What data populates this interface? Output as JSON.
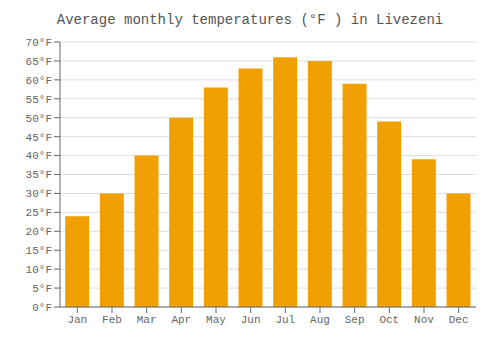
{
  "chart_data": {
    "type": "bar",
    "title": "Average monthly temperatures (°F ) in Livezeni",
    "categories": [
      "Jan",
      "Feb",
      "Mar",
      "Apr",
      "May",
      "Jun",
      "Jul",
      "Aug",
      "Sep",
      "Oct",
      "Nov",
      "Dec"
    ],
    "values": [
      24,
      30,
      40,
      50,
      58,
      63,
      66,
      65,
      59,
      49,
      39,
      30
    ],
    "color": "#F0A000",
    "ylim": [
      0,
      70
    ],
    "yticks": [
      {
        "value": 0,
        "label": "0°F"
      },
      {
        "value": 5,
        "label": "5°F"
      },
      {
        "value": 10,
        "label": "10°F"
      },
      {
        "value": 15,
        "label": "15°F"
      },
      {
        "value": 20,
        "label": "20°F"
      },
      {
        "value": 25,
        "label": "25°F"
      },
      {
        "value": 30,
        "label": "30°F"
      },
      {
        "value": 35,
        "label": "35°F"
      },
      {
        "value": 40,
        "label": "40°F"
      },
      {
        "value": 45,
        "label": "45°F"
      },
      {
        "value": 50,
        "label": "50°F"
      },
      {
        "value": 55,
        "label": "55°F"
      },
      {
        "value": 60,
        "label": "60°F"
      },
      {
        "value": 65,
        "label": "65°F"
      },
      {
        "value": 70,
        "label": "70°F"
      }
    ],
    "grid": true
  }
}
